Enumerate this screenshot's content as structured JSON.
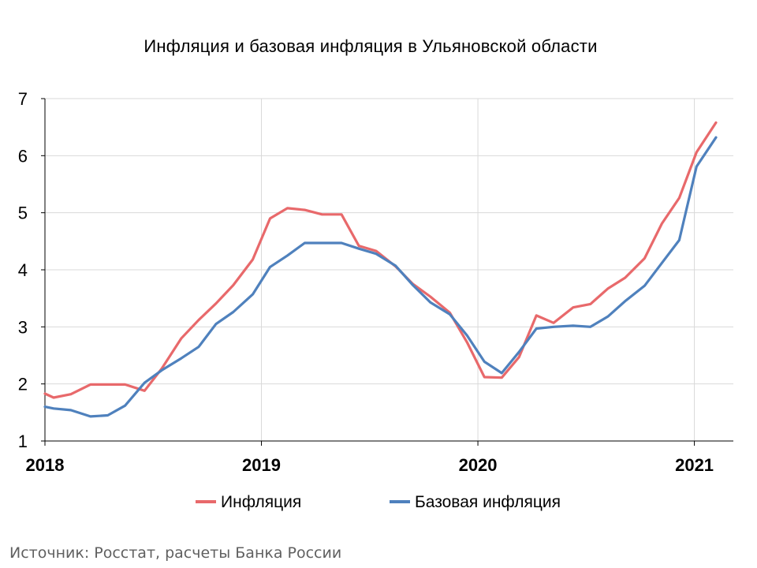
{
  "chart_data": {
    "type": "line",
    "title": "Инфляция и базовая инфляция в Ульяновской области",
    "ylim": [
      1,
      7
    ],
    "yticks": [
      "1",
      "2",
      "3",
      "4",
      "5",
      "6",
      "7"
    ],
    "xlim": [
      0,
      31.8
    ],
    "xticks": [
      {
        "label": "2018",
        "pos": 0
      },
      {
        "label": "2019",
        "pos": 10
      },
      {
        "label": "2020",
        "pos": 20
      },
      {
        "label": "2021",
        "pos": 30
      }
    ],
    "grid": true,
    "legend_position": "bottom",
    "series": [
      {
        "name": "Инфляция",
        "color": "#e8696b",
        "x": [
          0,
          0.4,
          1.2,
          2.1,
          2.9,
          3.7,
          4.6,
          5.4,
          6.3,
          7.1,
          7.9,
          8.7,
          9.6,
          10.4,
          11.2,
          12,
          12.8,
          13.7,
          14.5,
          15.3,
          16.2,
          17,
          17.8,
          18.7,
          19.5,
          20.3,
          21.1,
          21.9,
          22.7,
          23.5,
          24.4,
          25.2,
          26,
          26.8,
          27.7,
          28.5,
          29.3,
          30.1,
          31
        ],
        "values": [
          1.83,
          1.76,
          1.82,
          1.99,
          1.99,
          1.99,
          1.88,
          2.27,
          2.8,
          3.12,
          3.41,
          3.73,
          4.18,
          4.9,
          5.08,
          5.05,
          4.97,
          4.97,
          4.42,
          4.33,
          4.06,
          3.75,
          3.53,
          3.25,
          2.73,
          2.12,
          2.11,
          2.47,
          3.2,
          3.07,
          3.34,
          3.4,
          3.67,
          3.86,
          4.2,
          4.81,
          5.26,
          6.06,
          6.58
        ]
      },
      {
        "name": "Базовая инфляция",
        "color": "#4f81bd",
        "x": [
          0,
          0.4,
          1.2,
          2.1,
          2.9,
          3.7,
          4.6,
          5.4,
          6.3,
          7.1,
          7.9,
          8.7,
          9.6,
          10.4,
          11.2,
          12,
          12.8,
          13.7,
          14.5,
          15.3,
          16.2,
          17,
          17.8,
          18.7,
          19.5,
          20.3,
          21.1,
          21.9,
          22.7,
          23.5,
          24.4,
          25.2,
          26,
          26.8,
          27.7,
          28.5,
          29.3,
          30.1,
          31
        ],
        "values": [
          1.6,
          1.57,
          1.54,
          1.43,
          1.45,
          1.62,
          2.02,
          2.24,
          2.45,
          2.65,
          3.05,
          3.26,
          3.57,
          4.05,
          4.25,
          4.47,
          4.47,
          4.47,
          4.37,
          4.28,
          4.07,
          3.73,
          3.43,
          3.22,
          2.85,
          2.39,
          2.19,
          2.56,
          2.97,
          3.0,
          3.02,
          3.0,
          3.18,
          3.45,
          3.72,
          4.12,
          4.52,
          5.81,
          6.32
        ]
      }
    ]
  },
  "source_text": "Источник: Росстат, расчеты Банка России"
}
